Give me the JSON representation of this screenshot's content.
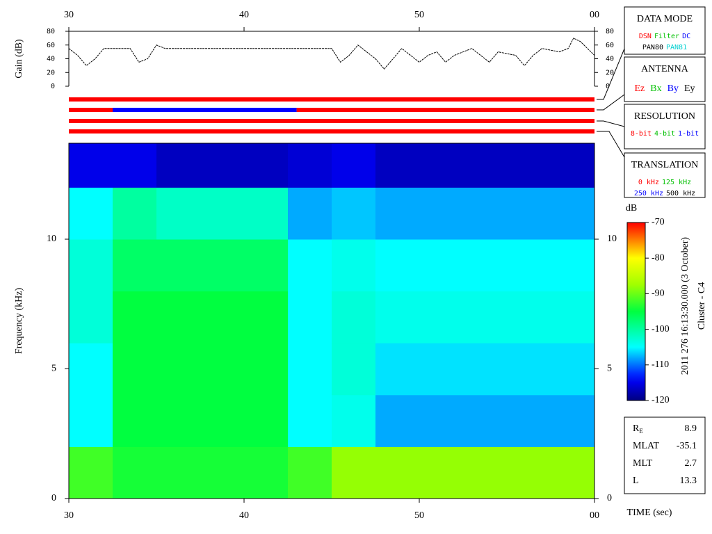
{
  "chart_data": [
    {
      "type": "line",
      "y_label": "Gain (dB)",
      "color": "#000000",
      "xlim": [
        30,
        60
      ],
      "xticks": [
        30,
        40,
        50,
        {
          "value": 60,
          "label": "00"
        }
      ],
      "ylim": [
        0,
        80
      ],
      "yticks": [
        0,
        20,
        40,
        60,
        80
      ],
      "x": [
        30,
        30.5,
        31,
        31.5,
        32,
        33.5,
        34,
        34.5,
        35,
        35.5,
        45,
        45.5,
        46,
        46.5,
        47.5,
        48,
        48.5,
        49,
        50,
        50.5,
        51,
        51.5,
        52,
        53,
        54,
        54.5,
        55.5,
        56,
        56.5,
        57,
        58,
        58.5,
        58.8,
        59.2,
        59.6,
        60
      ],
      "values": [
        55,
        45,
        30,
        40,
        55,
        55,
        35,
        40,
        60,
        55,
        55,
        35,
        45,
        60,
        40,
        25,
        40,
        55,
        35,
        45,
        50,
        35,
        45,
        55,
        35,
        50,
        45,
        30,
        45,
        55,
        50,
        55,
        70,
        65,
        55,
        45
      ]
    },
    {
      "type": "heatmap",
      "x_label": "TIME (sec)",
      "y_label": "Frequency (kHz)",
      "xlim": [
        30,
        60
      ],
      "xticks": [
        30,
        40,
        50,
        {
          "value": 60,
          "label": "00"
        }
      ],
      "ylim": [
        0,
        13.7
      ],
      "yticks": [
        0,
        5,
        10
      ],
      "x_bins": [
        30,
        32.5,
        35,
        37.5,
        40,
        42.5,
        45,
        47.5,
        50,
        52.5,
        55,
        57.5,
        60
      ],
      "y_bins": [
        0,
        2,
        4,
        6,
        8,
        10,
        12,
        13.7
      ],
      "z": [
        [
          -92,
          -105,
          -105,
          -103,
          -103,
          -105,
          -115
        ],
        [
          -94,
          -95,
          -95,
          -95,
          -97,
          -100,
          -115
        ],
        [
          -94,
          -95,
          -95,
          -95,
          -97,
          -102,
          -117
        ],
        [
          -94,
          -95,
          -95,
          -95,
          -97,
          -102,
          -117
        ],
        [
          -94,
          -95,
          -95,
          -95,
          -97,
          -102,
          -117
        ],
        [
          -92,
          -105,
          -105,
          -105,
          -105,
          -108,
          -116
        ],
        [
          -88,
          -104,
          -103,
          -103,
          -104,
          -107,
          -115
        ],
        [
          -88,
          -108,
          -106,
          -104,
          -105,
          -108,
          -117
        ],
        [
          -88,
          -108,
          -106,
          -104,
          -105,
          -108,
          -117
        ],
        [
          -88,
          -108,
          -106,
          -104,
          -105,
          -108,
          -117
        ],
        [
          -88,
          -108,
          -106,
          -104,
          -105,
          -108,
          -117
        ],
        [
          -88,
          -108,
          -106,
          -104,
          -105,
          -108,
          -117
        ]
      ],
      "colorbar_label": "dB",
      "zlim": [
        -120,
        -70
      ],
      "zticks": [
        -70,
        -80,
        -90,
        -100,
        -110,
        -120
      ]
    }
  ],
  "status_bars": [
    {
      "segments": [
        {
          "x": [
            30,
            60
          ],
          "color": "#ff0000"
        }
      ]
    },
    {
      "segments": [
        {
          "x": [
            30,
            32.5
          ],
          "color": "#ff0000"
        },
        {
          "x": [
            32.5,
            43
          ],
          "color": "#0000ff"
        },
        {
          "x": [
            43,
            60
          ],
          "color": "#ff0000"
        }
      ]
    },
    {
      "segments": [
        {
          "x": [
            30,
            60
          ],
          "color": "#ff0000"
        }
      ]
    },
    {
      "segments": [
        {
          "x": [
            30,
            60
          ],
          "color": "#ff0000"
        }
      ]
    }
  ],
  "panels": [
    {
      "title": "DATA MODE",
      "rows": [
        [
          {
            "text": "DSN",
            "color": "#ff0000"
          },
          {
            "text": "Filter",
            "color": "#00c000"
          },
          {
            "text": "DC",
            "color": "#0000ff"
          }
        ],
        [
          {
            "text": "PAN80",
            "color": "#000000"
          },
          {
            "text": "PAN81",
            "color": "#00d0d0"
          }
        ]
      ]
    },
    {
      "title": "ANTENNA",
      "rows": [
        [
          {
            "text": "Ez",
            "color": "#ff0000"
          },
          {
            "text": "Bx",
            "color": "#00c000"
          },
          {
            "text": "By",
            "color": "#0000ff"
          },
          {
            "text": "Ey",
            "color": "#000000"
          }
        ]
      ]
    },
    {
      "title": "RESOLUTION",
      "rows": [
        [
          {
            "text": "8-bit",
            "color": "#ff0000"
          },
          {
            "text": "4-bit",
            "color": "#00c000"
          },
          {
            "text": "1-bit",
            "color": "#0000ff"
          }
        ]
      ]
    },
    {
      "title": "TRANSLATION",
      "rows": [
        [
          {
            "text": "0 kHz",
            "color": "#ff0000"
          },
          {
            "text": "125 kHz",
            "color": "#00c000"
          }
        ],
        [
          {
            "text": "250 kHz",
            "color": "#0000ff"
          },
          {
            "text": "500 kHz",
            "color": "#000000"
          }
        ]
      ]
    }
  ],
  "annotation": {
    "date": "2011 276 16:13:30.000 (3 October)",
    "spacecraft": "Cluster - C4"
  },
  "orbit": [
    {
      "label": "R",
      "sub": "E",
      "value": 8.9
    },
    {
      "label": "MLAT",
      "value": -35.1
    },
    {
      "label": "MLT",
      "value": 2.7
    },
    {
      "label": "L",
      "value": 13.3
    }
  ]
}
